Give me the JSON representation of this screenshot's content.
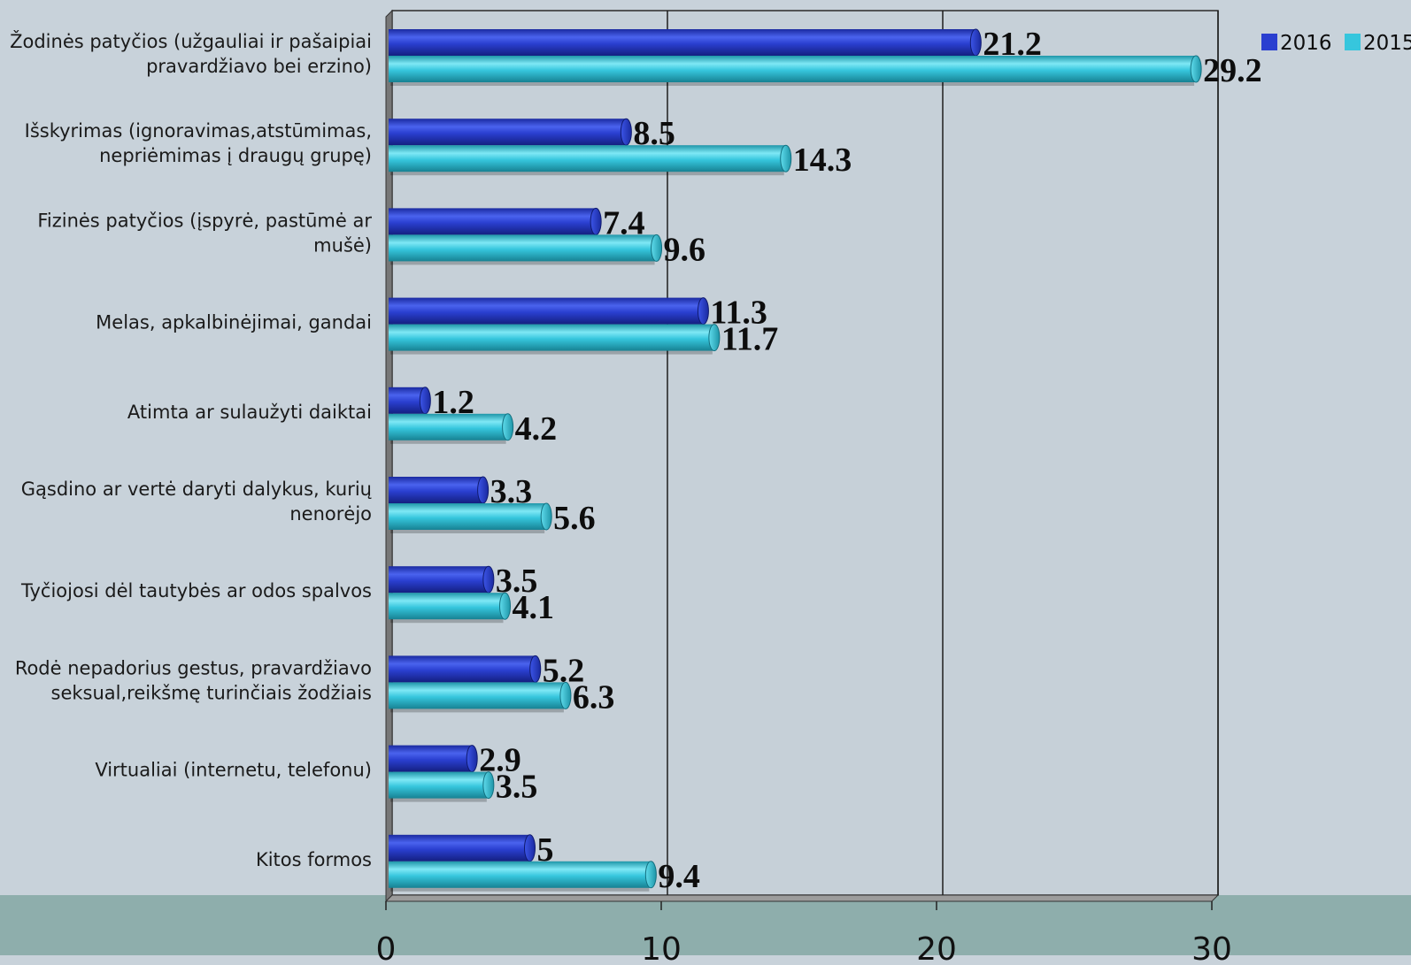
{
  "colors": {
    "background": "#c8d2da",
    "floor": "#8eaeac",
    "series_2016": "#2a3fd0",
    "series_2015": "#36c6dd",
    "gridline": "#1e1e1e"
  },
  "chart_data": {
    "type": "bar",
    "orientation": "horizontal",
    "style": "3d-cylinder",
    "title": "",
    "xlabel": "",
    "ylabel": "",
    "xlim": [
      0,
      30
    ],
    "x_ticks": [
      "0",
      "10",
      "20",
      "30"
    ],
    "grid": true,
    "legend_position": "top-right",
    "categories": [
      [
        "Žodinės patyčios (užgauliai ir pašaipiai",
        "pravardžiavo bei erzino)"
      ],
      [
        "Išskyrimas (ignoravimas,atstūmimas,",
        "nepriėmimas į draugų grupę)"
      ],
      [
        "Fizinės patyčios (įspyrė, pastūmė ar",
        "mušė)"
      ],
      [
        "Melas, apkalbinėjimai, gandai"
      ],
      [
        "Atimta ar sulaužyti daiktai"
      ],
      [
        "Gąsdino ar vertė daryti dalykus, kurių",
        "nenorėjo"
      ],
      [
        "Tyčiojosi dėl tautybės ar odos spalvos"
      ],
      [
        "Rodė nepadorius gestus, pravardžiavo",
        "seksual,reikšmę turinčiais žodžiais"
      ],
      [
        "Virtualiai (internetu, telefonu)"
      ],
      [
        "Kitos formos"
      ]
    ],
    "series": [
      {
        "name": "2016",
        "values": [
          21.2,
          8.5,
          7.4,
          11.3,
          1.2,
          3.3,
          3.5,
          5.2,
          2.9,
          5
        ],
        "labels": [
          "21.2",
          "8.5",
          "7.4",
          "11.3",
          "1.2",
          "3.3",
          "3.5",
          "5.2",
          "2.9",
          "5"
        ]
      },
      {
        "name": "2015",
        "values": [
          29.2,
          14.3,
          9.6,
          11.7,
          4.2,
          5.6,
          4.1,
          6.3,
          3.5,
          9.4
        ],
        "labels": [
          "29.2",
          "14.3",
          "9.6",
          "11.7",
          "4.2",
          "5.6",
          "4.1",
          "6.3",
          "3.5",
          "9.4"
        ]
      }
    ]
  }
}
